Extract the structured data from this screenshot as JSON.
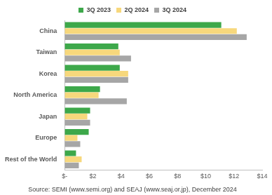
{
  "chart_data": {
    "type": "bar",
    "orientation": "horizontal",
    "source": "Source: SEMI (www.semi.org) and SEAJ (www.seaj.or.jp), December 2024",
    "categories": [
      "China",
      "Taiwan",
      "Korea",
      "North America",
      "Japan",
      "Europe",
      "Rest of the World"
    ],
    "series": [
      {
        "name": "3Q 2023",
        "color": "#3da84a",
        "values": [
          11.1,
          3.8,
          3.9,
          2.5,
          1.8,
          1.7,
          0.8
        ]
      },
      {
        "name": "2Q 2024",
        "color": "#f7d87c",
        "values": [
          12.2,
          3.9,
          4.5,
          2.4,
          1.6,
          0.9,
          1.2
        ]
      },
      {
        "name": "3Q 2024",
        "color": "#a6a6a6",
        "values": [
          12.9,
          4.7,
          4.5,
          4.4,
          1.8,
          1.1,
          1.0
        ]
      }
    ],
    "xlim": [
      0,
      14
    ],
    "xticks": [
      {
        "value": 0,
        "label": "$-"
      },
      {
        "value": 2,
        "label": "$2"
      },
      {
        "value": 4,
        "label": "$4"
      },
      {
        "value": 6,
        "label": "$6"
      },
      {
        "value": 8,
        "label": "$8"
      },
      {
        "value": 10,
        "label": "$10"
      },
      {
        "value": 12,
        "label": "$12"
      },
      {
        "value": 14,
        "label": "$14"
      }
    ],
    "grid": false,
    "legend": "top"
  }
}
